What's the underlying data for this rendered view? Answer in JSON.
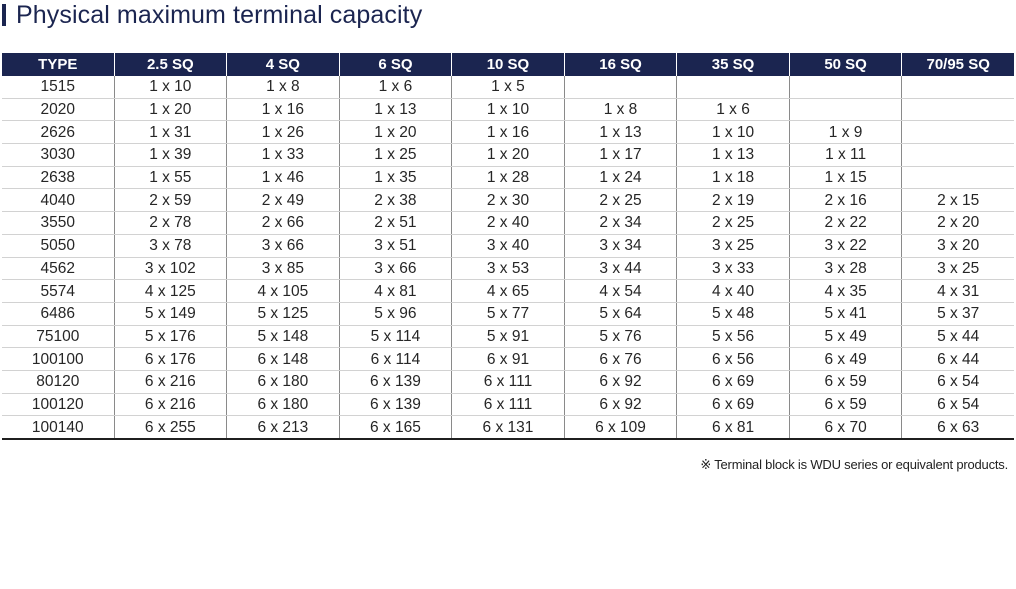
{
  "title": "Physical maximum terminal capacity",
  "colors": {
    "header_bg": "#1b2550",
    "header_text": "#ffffff",
    "title_text": "#1b2550",
    "body_text": "#262626"
  },
  "table": {
    "columns": [
      "TYPE",
      "2.5 SQ",
      "4 SQ",
      "6 SQ",
      "10 SQ",
      "16 SQ",
      "35 SQ",
      "50 SQ",
      "70/95 SQ"
    ],
    "rows": [
      [
        "1515",
        "1 x 10",
        "1 x 8",
        "1 x 6",
        "1 x 5",
        "",
        "",
        "",
        ""
      ],
      [
        "2020",
        "1 x 20",
        "1 x 16",
        "1 x 13",
        "1 x 10",
        "1 x 8",
        "1 x 6",
        "",
        ""
      ],
      [
        "2626",
        "1 x 31",
        "1 x 26",
        "1 x 20",
        "1 x 16",
        "1 x 13",
        "1 x 10",
        "1 x 9",
        ""
      ],
      [
        "3030",
        "1 x 39",
        "1 x 33",
        "1 x 25",
        "1 x 20",
        "1 x 17",
        "1 x 13",
        "1 x 11",
        ""
      ],
      [
        "2638",
        "1 x 55",
        "1 x 46",
        "1 x 35",
        "1 x 28",
        "1 x 24",
        "1 x 18",
        "1 x 15",
        ""
      ],
      [
        "4040",
        "2 x 59",
        "2 x 49",
        "2 x 38",
        "2 x 30",
        "2 x 25",
        "2 x 19",
        "2 x 16",
        "2 x 15"
      ],
      [
        "3550",
        "2 x 78",
        "2 x 66",
        "2 x 51",
        "2 x 40",
        "2 x 34",
        "2 x 25",
        "2 x 22",
        "2 x 20"
      ],
      [
        "5050",
        "3 x 78",
        "3 x 66",
        "3 x 51",
        "3 x 40",
        "3 x 34",
        "3 x 25",
        "3 x 22",
        "3 x 20"
      ],
      [
        "4562",
        "3 x 102",
        "3 x 85",
        "3 x 66",
        "3 x 53",
        "3 x 44",
        "3 x 33",
        "3 x 28",
        "3 x 25"
      ],
      [
        "5574",
        "4 x 125",
        "4 x 105",
        "4 x 81",
        "4 x 65",
        "4 x 54",
        "4 x 40",
        "4 x 35",
        "4 x 31"
      ],
      [
        "6486",
        "5 x 149",
        "5 x 125",
        "5 x 96",
        "5 x 77",
        "5 x 64",
        "5 x 48",
        "5 x 41",
        "5 x 37"
      ],
      [
        "75100",
        "5 x 176",
        "5 x 148",
        "5 x 114",
        "5 x 91",
        "5 x 76",
        "5 x 56",
        "5 x 49",
        "5 x 44"
      ],
      [
        "100100",
        "6 x 176",
        "6 x 148",
        "6 x 114",
        "6 x 91",
        "6 x 76",
        "6 x 56",
        "6 x 49",
        "6 x 44"
      ],
      [
        "80120",
        "6 x 216",
        "6 x 180",
        "6 x 139",
        "6 x 111",
        "6 x 92",
        "6 x 69",
        "6 x 59",
        "6 x 54"
      ],
      [
        "100120",
        "6 x 216",
        "6 x 180",
        "6 x 139",
        "6 x 111",
        "6 x 92",
        "6 x 69",
        "6 x 59",
        "6 x 54"
      ],
      [
        "100140",
        "6 x 255",
        "6 x 213",
        "6 x 165",
        "6 x 131",
        "6 x 109",
        "6 x 81",
        "6 x 70",
        "6 x 63"
      ]
    ]
  },
  "footnote": "※ Terminal block is WDU series or equivalent products."
}
